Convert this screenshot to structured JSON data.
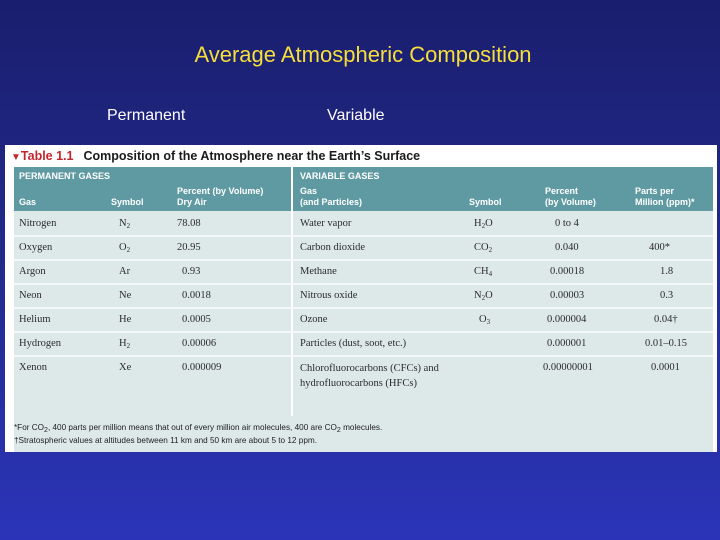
{
  "slide": {
    "title": "Average Atmospheric Composition",
    "left_label": "Permanent",
    "right_label": "Variable"
  },
  "table": {
    "caption_marker": "▼",
    "caption_number": "Table 1.1",
    "caption_title": "Composition of the Atmosphere near the Earth’s Surface",
    "permanent": {
      "section": "PERMANENT GASES",
      "headers": {
        "gas": "Gas",
        "symbol": "Symbol",
        "percent_l1": "Percent (by Volume)",
        "percent_l2": "Dry Air"
      },
      "rows": [
        {
          "gas": "Nitrogen",
          "sym": "N",
          "sub": "2",
          "pct": "78.08"
        },
        {
          "gas": "Oxygen",
          "sym": "O",
          "sub": "2",
          "pct": "20.95"
        },
        {
          "gas": "Argon",
          "sym": "Ar",
          "sub": "",
          "pct": "0.93"
        },
        {
          "gas": "Neon",
          "sym": "Ne",
          "sub": "",
          "pct": "0.0018"
        },
        {
          "gas": "Helium",
          "sym": "He",
          "sub": "",
          "pct": "0.0005"
        },
        {
          "gas": "Hydrogen",
          "sym": "H",
          "sub": "2",
          "pct": "0.00006"
        },
        {
          "gas": "Xenon",
          "sym": "Xe",
          "sub": "",
          "pct": "0.000009"
        }
      ]
    },
    "variable": {
      "section": "VARIABLE GASES",
      "headers": {
        "gas_l1": "Gas",
        "gas_l2": "(and Particles)",
        "symbol": "Symbol",
        "percent_l1": "Percent",
        "percent_l2": "(by Volume)",
        "ppm_l1": "Parts per",
        "ppm_l2": "Million (ppm)*"
      },
      "rows": [
        {
          "gas": "Water vapor",
          "sym_a": "H",
          "sub": "2",
          "sym_b": "O",
          "pct": "0 to 4",
          "ppm": ""
        },
        {
          "gas": "Carbon dioxide",
          "sym_a": "CO",
          "sub": "2",
          "sym_b": "",
          "pct": "0.040",
          "ppm": "400*"
        },
        {
          "gas": "Methane",
          "sym_a": "CH",
          "sub": "4",
          "sym_b": "",
          "pct": "0.00018",
          "ppm": "1.8"
        },
        {
          "gas": "Nitrous oxide",
          "sym_a": "N",
          "sub": "2",
          "sym_b": "O",
          "pct": "0.00003",
          "ppm": "0.3"
        },
        {
          "gas": "Ozone",
          "sym_a": "O",
          "sub": "3",
          "sym_b": "",
          "pct": "0.000004",
          "ppm": "0.04†"
        },
        {
          "gas": "Particles (dust, soot, etc.)",
          "sym_a": "",
          "sub": "",
          "sym_b": "",
          "pct": "0.000001",
          "ppm": "0.01–0.15"
        },
        {
          "gas": "Chlorofluorocarbons (CFCs) and hydrofluorocarbons (HFCs)",
          "sym_a": "",
          "sub": "",
          "sym_b": "",
          "pct": "0.00000001",
          "ppm": "0.0001"
        }
      ]
    },
    "footnotes": {
      "n1_a": "*For CO",
      "n1_sub": "2",
      "n1_b": ", 400 parts per million means that out of every million air molecules, 400 are CO",
      "n1_sub2": "2",
      "n1_c": " molecules.",
      "n2": "†Stratospheric values at altitudes between 11 km and 50 km are about 5 to 12 ppm."
    }
  }
}
